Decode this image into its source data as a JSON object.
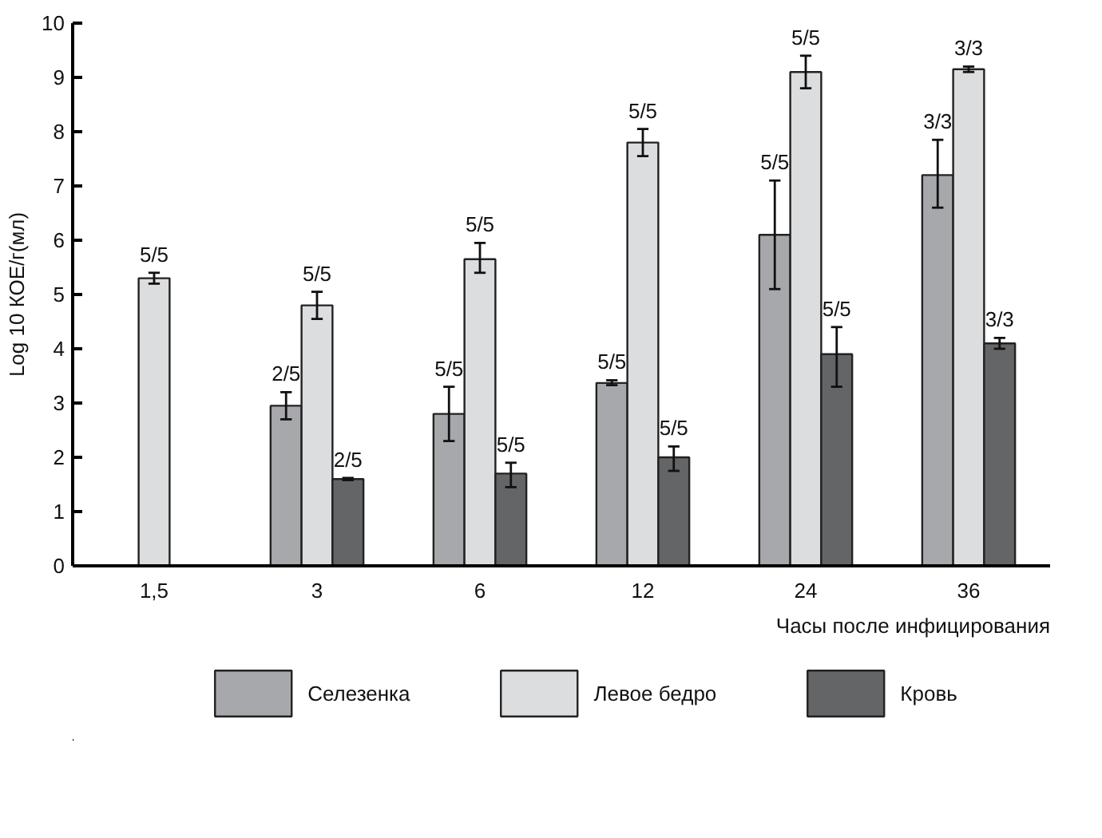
{
  "chart_data": {
    "type": "bar",
    "xlabel": "Часы после инфицирования",
    "ylabel": "Log 10 КОЕ/г(мл)",
    "categories": [
      "1,5",
      "3",
      "6",
      "12",
      "24",
      "36"
    ],
    "ylim": [
      0,
      10
    ],
    "yticks": [
      0,
      1,
      2,
      3,
      4,
      5,
      6,
      7,
      8,
      9,
      10
    ],
    "grid": false,
    "legend": "bottom",
    "series": [
      {
        "name": "Селезенка",
        "color": "#a7a8ab",
        "values": [
          null,
          2.95,
          2.8,
          3.37,
          6.1,
          7.2
        ],
        "errors": [
          null,
          [
            2.7,
            3.2
          ],
          [
            2.3,
            3.3
          ],
          [
            3.33,
            3.42
          ],
          [
            5.1,
            7.1
          ],
          [
            6.6,
            7.85
          ]
        ]
      },
      {
        "name": "Левое бедро",
        "color": "#dcdddf",
        "values": [
          5.3,
          4.8,
          5.65,
          7.8,
          9.1,
          9.15
        ],
        "errors": [
          [
            5.2,
            5.4
          ],
          [
            4.55,
            5.05
          ],
          [
            5.4,
            5.95
          ],
          [
            7.55,
            8.05
          ],
          [
            8.8,
            9.4
          ],
          [
            9.1,
            9.2
          ]
        ]
      },
      {
        "name": "Кровь",
        "color": "#646567",
        "values": [
          null,
          1.6,
          1.7,
          2.0,
          3.9,
          4.1
        ],
        "errors": [
          null,
          [
            1.58,
            1.62
          ],
          [
            1.45,
            1.9
          ],
          [
            1.75,
            2.2
          ],
          [
            3.3,
            4.4
          ],
          [
            4.0,
            4.2
          ]
        ]
      }
    ],
    "annotations": [
      "5/5",
      "2/5",
      "5/5",
      "2/5",
      "5/5",
      "5/5",
      "5/5",
      "5/5",
      "5/5",
      "5/5",
      "5/5",
      "5/5",
      "5/5",
      "3/3",
      "3/3",
      "3/3"
    ]
  }
}
